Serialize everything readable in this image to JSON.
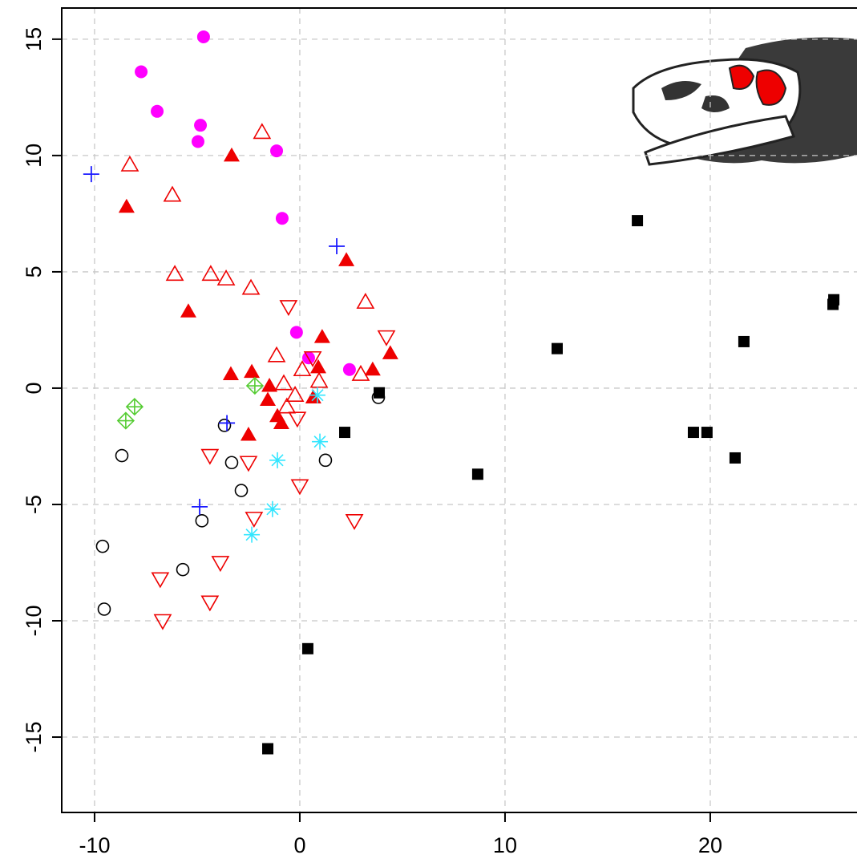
{
  "chart_data": {
    "type": "scatter",
    "xlim": [
      -11.6,
      27.15
    ],
    "ylim": [
      -18.24,
      16.34
    ],
    "xticks": [
      -10,
      0,
      10,
      20
    ],
    "yticks": [
      -15,
      -10,
      -5,
      0,
      5,
      10,
      15
    ],
    "grid": true,
    "series": [
      {
        "marker": "filled-circle",
        "color": "#ff00ff",
        "x": [
          -4.69,
          -7.73,
          -6.95,
          -4.84,
          -4.96,
          -1.13,
          -0.86,
          -0.16,
          0.43,
          2.42
        ],
        "values": [
          15.1,
          13.6,
          11.9,
          11.3,
          10.6,
          10.2,
          7.3,
          2.4,
          1.3,
          0.8
        ]
      },
      {
        "marker": "open-triangle",
        "color": "#ee0000",
        "x": [
          -8.28,
          -6.21,
          -1.84,
          -6.09,
          -4.34,
          -3.59,
          -2.38,
          3.2,
          -1.13,
          0.12,
          -0.78,
          2.97,
          0.94,
          -0.23,
          -0.63
        ],
        "values": [
          9.6,
          8.3,
          11.0,
          4.9,
          4.9,
          4.7,
          4.3,
          3.7,
          1.4,
          0.8,
          0.2,
          0.6,
          0.3,
          -0.3,
          -0.8
        ]
      },
      {
        "marker": "filled-triangle",
        "color": "#ee0000",
        "x": [
          -3.32,
          -8.44,
          2.27,
          -5.43,
          1.09,
          4.41,
          3.55,
          -3.36,
          -2.34,
          0.9,
          -1.48,
          -1.56,
          0.66,
          -1.09,
          -0.9,
          -2.5
        ],
        "values": [
          10.0,
          7.8,
          5.5,
          3.3,
          2.2,
          1.5,
          0.8,
          0.6,
          0.7,
          0.9,
          0.1,
          -0.5,
          -0.4,
          -1.2,
          -1.5,
          -2.0
        ]
      },
      {
        "marker": "open-down-triangle",
        "color": "#ee0000",
        "x": [
          -0.55,
          4.22,
          0.63,
          -0.12,
          -4.38,
          -2.5,
          0.0,
          -2.23,
          2.66,
          -3.87,
          -6.8,
          -4.38,
          -6.68
        ],
        "values": [
          3.5,
          2.2,
          1.3,
          -1.3,
          -2.9,
          -3.2,
          -4.2,
          -5.6,
          -5.7,
          -7.5,
          -8.2,
          -9.2,
          -10.0
        ]
      },
      {
        "marker": "open-circle",
        "color": "#000000",
        "x": [
          3.83,
          -8.67,
          -3.67,
          -3.32,
          1.25,
          -2.85,
          -4.77,
          -9.61,
          -5.7,
          -9.53
        ],
        "values": [
          -0.4,
          -2.9,
          -1.6,
          -3.2,
          -3.1,
          -4.4,
          -5.7,
          -6.8,
          -7.8,
          -9.5
        ]
      },
      {
        "marker": "filled-square",
        "color": "#000000",
        "x": [
          3.87,
          2.19,
          8.67,
          12.54,
          16.45,
          21.64,
          26.02,
          25.98,
          19.18,
          19.84,
          21.21,
          0.39,
          -1.56
        ],
        "values": [
          -0.2,
          -1.9,
          -3.7,
          1.7,
          7.2,
          2.0,
          3.8,
          3.6,
          -1.9,
          -1.9,
          -3.0,
          -11.2,
          -15.5
        ]
      },
      {
        "marker": "plus",
        "color": "#1a1aff",
        "x": [
          -10.16,
          1.8,
          -3.55,
          -4.88
        ],
        "values": [
          9.2,
          6.1,
          -1.5,
          -5.1
        ]
      },
      {
        "marker": "asterisk",
        "color": "#33e6ff",
        "x": [
          0.86,
          0.98,
          -1.09,
          -1.33,
          -2.34
        ],
        "values": [
          -0.3,
          -2.3,
          -3.1,
          -5.2,
          -6.3
        ]
      },
      {
        "marker": "diamond-plus",
        "color": "#55cc33",
        "x": [
          -8.05,
          -8.48,
          -2.19
        ],
        "values": [
          -0.8,
          -1.4,
          0.1
        ]
      }
    ]
  }
}
